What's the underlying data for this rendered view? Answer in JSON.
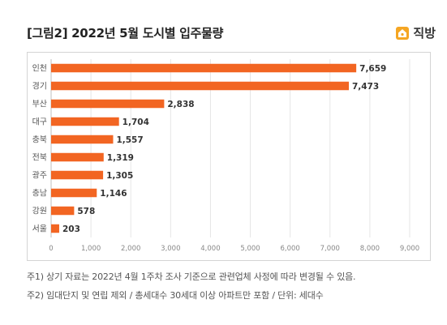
{
  "header": {
    "title": "[그림2] 2022년 5월 도시별 입주물량",
    "brand_name": "직방"
  },
  "notes": [
    "주1) 상기 자료는 2022년 4월 1주차 조사 기준으로 관련업체 사정에 따라 변경될 수 있음.",
    "주2) 임대단지 및 연립 제외 / 총세대수 30세대 이상 아파트만 포함 / 단위: 세대수"
  ],
  "colors": {
    "bar": "#f26522",
    "brand_icon": "#f5a623",
    "grid": "#e6e6e6",
    "axis": "#bfbfbf"
  },
  "chart_data": {
    "type": "bar",
    "orientation": "horizontal",
    "categories": [
      "인천",
      "경기",
      "부산",
      "대구",
      "충북",
      "전북",
      "광주",
      "충남",
      "강원",
      "서울"
    ],
    "values": [
      7659,
      7473,
      2838,
      1704,
      1557,
      1319,
      1305,
      1146,
      578,
      203
    ],
    "value_labels": [
      "7,659",
      "7,473",
      "2,838",
      "1,704",
      "1,557",
      "1,319",
      "1,305",
      "1,146",
      "578",
      "203"
    ],
    "xlim": [
      0,
      9000
    ],
    "xticks": [
      0,
      1000,
      2000,
      3000,
      4000,
      5000,
      6000,
      7000,
      8000,
      9000
    ],
    "xtick_labels": [
      "0",
      "1,000",
      "2,000",
      "3,000",
      "4,000",
      "5,000",
      "6,000",
      "7,000",
      "8,000",
      "9,000"
    ],
    "grid": true,
    "legend": "none"
  }
}
